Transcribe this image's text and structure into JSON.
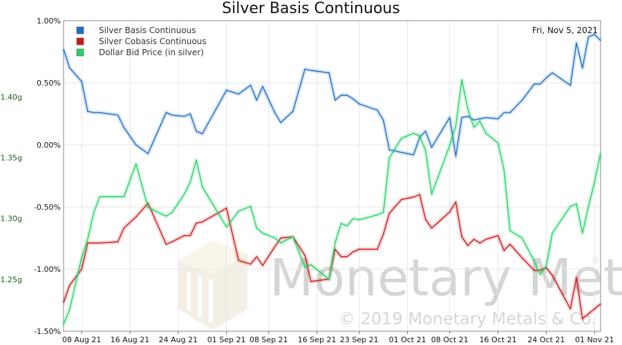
{
  "chart_data": {
    "type": "line",
    "title": "Silver Basis Continuous",
    "date_label": "Fri, Nov 5, 2021",
    "xlabel": "",
    "ylabel": "",
    "x_ticks": [
      "08 Aug 21",
      "16 Aug 21",
      "24 Aug 21",
      "01 Sep 21",
      "08 Sep 21",
      "16 Sep 21",
      "23 Sep 21",
      "01 Oct 21",
      "08 Oct 21",
      "16 Oct 21",
      "24 Oct 21",
      "01 Nov 21"
    ],
    "y_left": {
      "min": -1.5,
      "max": 1.0,
      "ticks": [
        "1.00%",
        "0.50%",
        "0.00%",
        "-0.50%",
        "-1.00%",
        "-1.50%"
      ]
    },
    "y_right": {
      "min": 1.20737,
      "max": 1.46263,
      "ticks": [
        "1.40g",
        "1.35g",
        "1.30g",
        "1.25g"
      ]
    },
    "grid": true,
    "legend_position": "top-left",
    "series": [
      {
        "name": "Silver Basis Continuous",
        "color": "#1f6fc5",
        "axis": "left",
        "x": [
          0,
          1,
          3,
          4,
          5,
          6,
          9,
          10,
          12,
          14,
          17,
          18,
          20,
          21,
          22,
          23,
          27,
          29,
          31,
          32,
          33,
          35,
          36,
          38,
          40,
          41,
          44,
          45,
          46,
          47,
          48,
          49,
          52,
          53,
          54,
          56,
          58,
          59,
          60,
          61,
          64,
          65,
          66,
          67,
          68,
          69,
          70,
          72,
          73,
          74,
          76,
          78,
          79,
          80,
          81,
          84,
          85,
          86,
          87,
          88,
          89
        ],
        "y": [
          0.77,
          0.62,
          0.51,
          0.27,
          0.26,
          0.26,
          0.24,
          0.14,
          0.0,
          -0.07,
          0.26,
          0.24,
          0.23,
          0.25,
          0.11,
          0.09,
          0.44,
          0.41,
          0.48,
          0.36,
          0.47,
          0.26,
          0.18,
          0.27,
          0.61,
          0.6,
          0.58,
          0.36,
          0.4,
          0.4,
          0.37,
          0.33,
          0.28,
          0.2,
          -0.04,
          -0.06,
          -0.08,
          0.06,
          0.11,
          -0.02,
          0.22,
          -0.09,
          0.22,
          0.23,
          0.2,
          0.21,
          0.22,
          0.21,
          0.26,
          0.26,
          0.36,
          0.49,
          0.49,
          0.54,
          0.58,
          0.48,
          0.82,
          0.62,
          0.87,
          0.89,
          0.84
        ]
      },
      {
        "name": "Silver Cobasis Continuous",
        "color": "#cc1a1a",
        "axis": "left",
        "x": [
          0,
          1,
          3,
          4,
          5,
          6,
          9,
          10,
          12,
          14,
          17,
          18,
          20,
          21,
          22,
          23,
          27,
          29,
          31,
          32,
          33,
          35,
          36,
          38,
          40,
          41,
          44,
          45,
          46,
          47,
          48,
          49,
          52,
          53,
          54,
          56,
          58,
          59,
          60,
          61,
          64,
          65,
          66,
          67,
          68,
          69,
          70,
          72,
          73,
          74,
          76,
          78,
          79,
          80,
          81,
          84,
          85,
          86,
          87,
          88,
          89
        ],
        "y": [
          -1.27,
          -1.13,
          -1.0,
          -0.79,
          -0.79,
          -0.79,
          -0.78,
          -0.67,
          -0.58,
          -0.47,
          -0.8,
          -0.78,
          -0.73,
          -0.73,
          -0.63,
          -0.62,
          -0.51,
          -0.93,
          -0.96,
          -0.9,
          -0.97,
          -0.82,
          -0.75,
          -0.74,
          -0.89,
          -1.1,
          -1.08,
          -0.84,
          -0.9,
          -0.9,
          -0.86,
          -0.84,
          -0.84,
          -0.72,
          -0.55,
          -0.44,
          -0.42,
          -0.4,
          -0.6,
          -0.67,
          -0.54,
          -0.46,
          -0.74,
          -0.81,
          -0.76,
          -0.79,
          -0.76,
          -0.73,
          -0.85,
          -0.8,
          -0.91,
          -1.01,
          -1.01,
          -0.99,
          -1.05,
          -1.32,
          -1.07,
          -1.4,
          -1.36,
          -1.32,
          -1.28
        ]
      },
      {
        "name": "Dollar Bid Price (in silver)",
        "color": "#22d466",
        "axis": "right",
        "x": [
          0,
          1,
          3,
          4,
          5,
          6,
          9,
          10,
          12,
          14,
          17,
          18,
          20,
          21,
          22,
          23,
          27,
          29,
          31,
          32,
          33,
          35,
          36,
          38,
          40,
          41,
          44,
          45,
          46,
          47,
          48,
          49,
          52,
          53,
          54,
          56,
          58,
          59,
          60,
          61,
          64,
          65,
          66,
          67,
          68,
          69,
          70,
          72,
          73,
          74,
          76,
          78,
          79,
          80,
          81,
          84,
          85,
          86,
          87,
          88,
          89
        ],
        "y": [
          1.213,
          1.225,
          1.268,
          1.283,
          1.305,
          1.318,
          1.318,
          1.318,
          1.345,
          1.309,
          1.302,
          1.305,
          1.32,
          1.33,
          1.348,
          1.326,
          1.293,
          1.306,
          1.31,
          1.292,
          1.288,
          1.284,
          1.28,
          1.285,
          1.26,
          1.262,
          1.25,
          1.28,
          1.296,
          1.294,
          1.3,
          1.299,
          1.303,
          1.305,
          1.35,
          1.366,
          1.37,
          1.368,
          1.356,
          1.32,
          1.36,
          1.376,
          1.414,
          1.39,
          1.375,
          1.38,
          1.37,
          1.362,
          1.34,
          1.29,
          1.284,
          1.265,
          1.254,
          1.261,
          1.288,
          1.31,
          1.312,
          1.288,
          1.31,
          1.33,
          1.354
        ]
      }
    ]
  },
  "watermark": {
    "brand": "Monetary Metals",
    "registered": "®",
    "copyright": "© 2019 Monetary Metals & Co."
  }
}
